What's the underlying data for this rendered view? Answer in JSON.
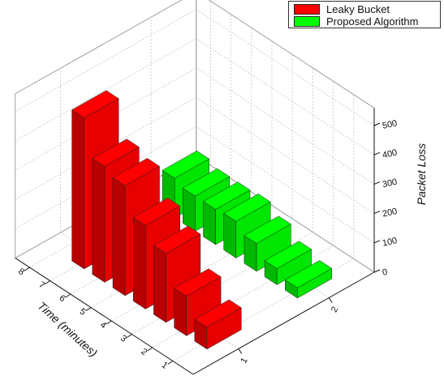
{
  "chart_data": {
    "type": "bar",
    "title": "",
    "zlabel": "Packet Loss",
    "xlabel": "",
    "ylabel": "Time (minutes)",
    "zlim": [
      0,
      500
    ],
    "z_ticks": [
      "0",
      "100",
      "200",
      "300",
      "400",
      "500"
    ],
    "time_ticks": [
      "1",
      "2",
      "3",
      "4",
      "5",
      "6",
      "7",
      "8"
    ],
    "row_ticks": [
      "1",
      "2"
    ],
    "grid": true,
    "legend_position": "top-right",
    "series": [
      {
        "name": "Leaky Bucket",
        "color": "#ff0000",
        "time": [
          1,
          2,
          3,
          4,
          5,
          6,
          7
        ],
        "values": [
          75,
          135,
          235,
          285,
          375,
          395,
          515
        ]
      },
      {
        "name": "Proposed Algorithm",
        "color": "#00ff00",
        "time": [
          1,
          2,
          3,
          4,
          5,
          6,
          7
        ],
        "values": [
          35,
          55,
          95,
          125,
          120,
          120,
          135
        ]
      }
    ]
  }
}
